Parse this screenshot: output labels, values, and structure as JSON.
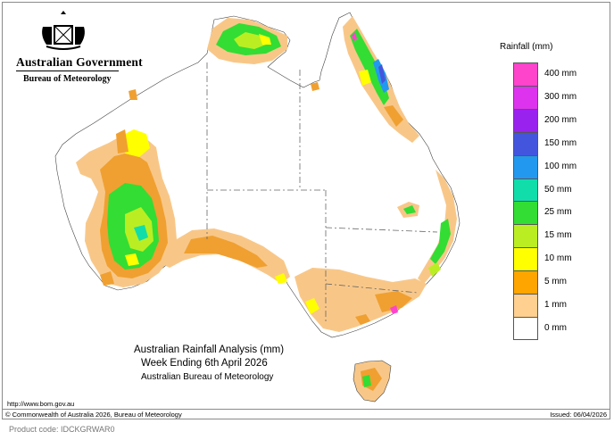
{
  "branding": {
    "government": "Australian Government",
    "bureau": "Bureau of Meteorology"
  },
  "legend": {
    "title": "Rainfall (mm)",
    "items": [
      {
        "label": "400 mm",
        "color": "#ff44cc"
      },
      {
        "label": "300 mm",
        "color": "#dd33ee"
      },
      {
        "label": "200 mm",
        "color": "#9922ee"
      },
      {
        "label": "150 mm",
        "color": "#4455dd"
      },
      {
        "label": "100 mm",
        "color": "#2299ee"
      },
      {
        "label": "50 mm",
        "color": "#11ddaa"
      },
      {
        "label": "25 mm",
        "color": "#33dd33"
      },
      {
        "label": "15 mm",
        "color": "#bbee22"
      },
      {
        "label": "10 mm",
        "color": "#ffff00"
      },
      {
        "label": "5 mm",
        "color": "#ffa500"
      },
      {
        "label": "1 mm",
        "color": "#ffd090"
      },
      {
        "label": "0 mm",
        "color": "#ffffff"
      }
    ]
  },
  "title": {
    "line1": "Australian Rainfall Analysis (mm)",
    "line2": "Week Ending 6th April 2026",
    "line3": "Australian Bureau of Meteorology"
  },
  "footer": {
    "url": "http://www.bom.gov.au",
    "copyright": "© Commonwealth of Australia 2026, Bureau of Meteorology",
    "issued": "Issued: 06/04/2026"
  },
  "product_code": "Product code: IDCKGRWAR0",
  "colors": {
    "orange_light": "#f8c788",
    "orange": "#f0a030",
    "yellow": "#ffff00",
    "yellow_green": "#bbee22",
    "green": "#33dd33",
    "teal": "#11ddaa",
    "blue": "#2299ee",
    "indigo": "#4455dd",
    "purple": "#9922ee",
    "magenta": "#ff44cc",
    "border": "#444444",
    "state_border": "#666666"
  }
}
